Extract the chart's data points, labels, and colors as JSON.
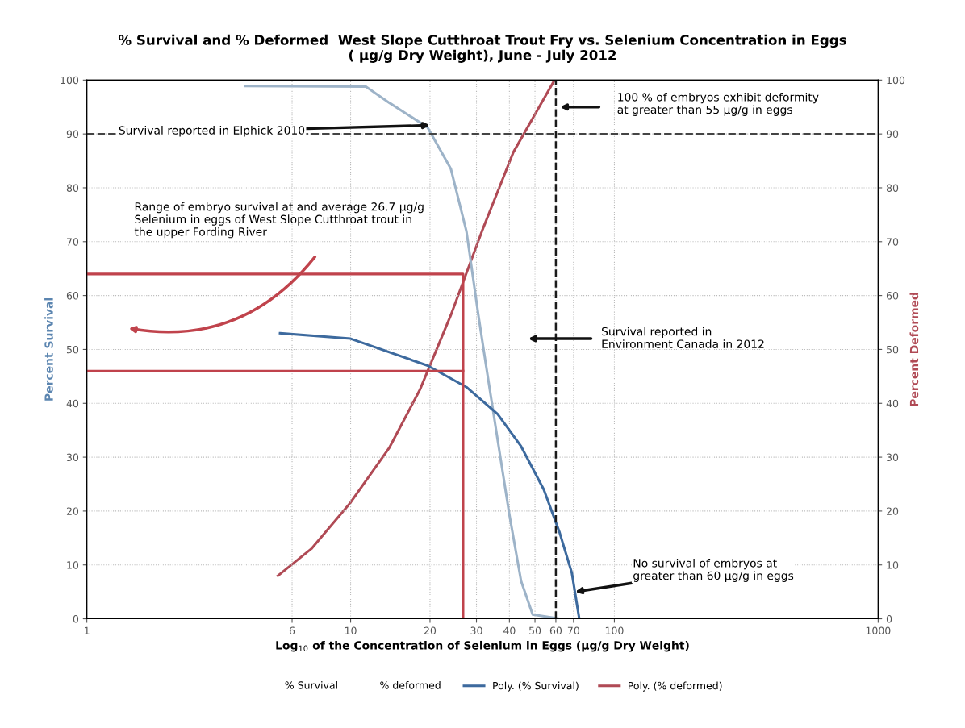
{
  "chart_data": {
    "type": "line",
    "title": "% Survival and % Deformed  West Slope Cutthroat Trout Fry vs. Selenium Concentration in Eggs\n( µg/g Dry Weight), June - July 2012",
    "xlabel": "Log$_{10}$ of the Concentration of Selenium in Eggs (µg/g Dry Weight)",
    "ylabel": "Percent Survival",
    "y2label": "Percent Deformed",
    "log": "x",
    "xlim": [
      1,
      1000
    ],
    "xticks": [
      1,
      6,
      10,
      20,
      30,
      40,
      50,
      60,
      70,
      100,
      1000
    ],
    "ylim": [
      0,
      100
    ],
    "yticks": [
      0,
      10,
      20,
      30,
      40,
      50,
      60,
      70,
      80,
      90,
      100
    ],
    "y2lim": [
      0,
      100
    ],
    "y2ticks": [
      0,
      10,
      20,
      30,
      40,
      50,
      60,
      70,
      80,
      90,
      100
    ],
    "grid": true,
    "legend": "bottom",
    "marker": "none",
    "series": [
      {
        "color": "#9db3c8",
        "x": [
          4.0,
          11.4,
          14.0,
          19.6,
          24,
          27.5,
          30.5,
          32.6,
          36.1,
          40,
          44.3,
          49,
          62,
          87
        ],
        "values": [
          98.9,
          98.8,
          95.8,
          91.2,
          83.5,
          71.9,
          56.4,
          47.1,
          33.2,
          19.3,
          7,
          0.8,
          0,
          0
        ]
      },
      {
        "name": "Poly. (% Survival)",
        "color": "#3d6a9e",
        "x": [
          5.4,
          10,
          19.6,
          27.5,
          36.1,
          44.3,
          54,
          62,
          69,
          73.6
        ],
        "values": [
          53,
          52,
          47,
          43,
          38,
          32,
          24,
          16,
          8.5,
          0
        ]
      },
      {
        "name": "Poly. (% deformed)",
        "color": "#b04a55",
        "axis": "y2",
        "x": [
          5.3,
          7.1,
          10,
          14,
          18.3,
          24,
          31.5,
          41.4,
          59.3
        ],
        "values": [
          8,
          13,
          21.6,
          31.7,
          42.5,
          56.4,
          72,
          86.6,
          100
        ]
      },
      {
        "color": "#c0434c",
        "x": [
          1,
          26.7,
          26.7
        ],
        "values": [
          64,
          64,
          0
        ]
      },
      {
        "color": "#c0434c",
        "x": [
          1,
          26.7
        ],
        "values": [
          46,
          46
        ]
      }
    ],
    "ref_lines": [
      {
        "axis": "x",
        "value": 60,
        "color": "#1a1a1a",
        "line_style": "dashed"
      },
      {
        "axis": "y",
        "value": 90,
        "color": "#444444",
        "line_style": "dashed"
      }
    ],
    "annotations": [
      {
        "text": "Survival reported in Elphick 2010",
        "x": 20,
        "y": 91.6
      },
      "Range of embryo survival at and average 26.7 µg/g\nSelenium in eggs of West Slope Cutthroat trout in\nthe upper Fording River",
      "100 % of embryos exhibit deformity\nat greater than 55 µg/g in eggs",
      "Survival reported in\nEnvironment Canada in 2012",
      {
        "text": "No survival of embryos at\ngreater than 60 µg/g in eggs",
        "x": 71,
        "y": 5
      },
      "% Survival",
      "% deformed"
    ]
  }
}
